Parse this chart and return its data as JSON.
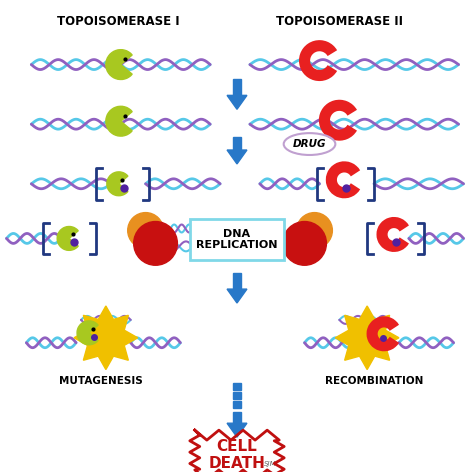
{
  "title_left": "TOPOISOMERASE I",
  "title_right": "TOPOISOMERASE II",
  "drug_label": "DRUG",
  "dna_rep_label": "DNA\nREPLICATION",
  "mutagenesis_label": "MUTAGENESIS",
  "recombination_label": "RECOMBINATION",
  "cell_death_label": "CELL\nDEATH",
  "bg_color": "#ffffff",
  "arrow_color": "#2878c8",
  "title_fontsize": 9,
  "label_fontsize": 8,
  "dna_color_top": "#56c8e8",
  "dna_color_bot": "#9060c0",
  "enzyme1_color": "#a8c820",
  "enzyme2_color": "#e82020",
  "orange_blob": "#e89020",
  "red_blob": "#c81010",
  "bracket_color": "#203880",
  "cell_death_text_color": "#c01010",
  "cell_death_border": "#c01010",
  "dna_rep_box_color": "#80d8e8",
  "drug_oval_color": "#c0a0d0"
}
